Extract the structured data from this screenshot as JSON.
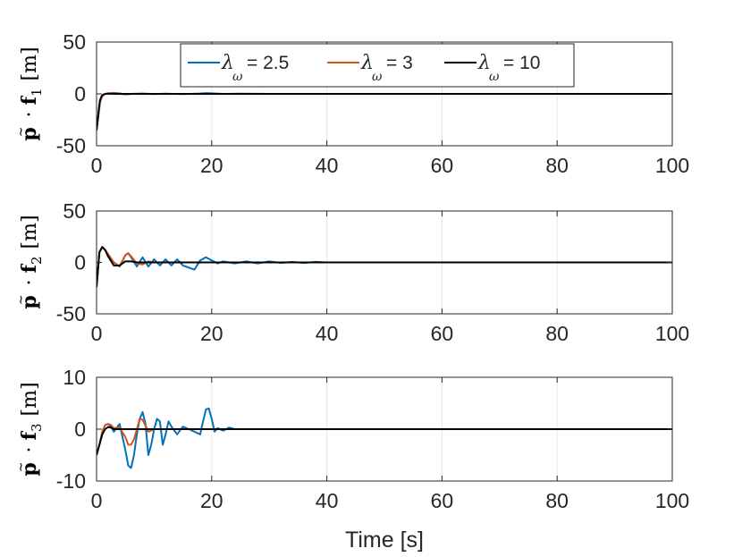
{
  "chart_data": [
    {
      "type": "line",
      "ylabel": {
        "vector": "p",
        "dot": "·",
        "basis": "f",
        "subscript": "1",
        "unit": "[m]"
      },
      "ylim": [
        -50,
        50
      ],
      "yticks": [
        "50",
        "0",
        "-50"
      ],
      "yticks_values": [
        50,
        0,
        -50
      ],
      "xlim": [
        0,
        100
      ],
      "xticks": [
        "0",
        "20",
        "40",
        "60",
        "80",
        "100"
      ],
      "xticks_values": [
        0,
        20,
        40,
        60,
        80,
        100
      ],
      "grid": true,
      "legend": {
        "placement": "top-center",
        "entries": [
          {
            "symbol": "λ",
            "sub": "ω",
            "text": "= 2.5",
            "color": "#0072BD"
          },
          {
            "symbol": "λ",
            "sub": "ω",
            "text": "= 3",
            "color": "#D95319"
          },
          {
            "symbol": "λ",
            "sub": "ω",
            "text": "= 10",
            "color": "#000000"
          }
        ]
      },
      "series": [
        {
          "color": "#0072BD",
          "x": [
            0,
            0.3,
            0.6,
            1,
            1.5,
            2,
            3,
            4,
            5,
            6,
            8,
            10,
            12,
            15,
            18,
            19,
            20,
            22,
            25,
            30,
            40,
            60,
            80,
            100
          ],
          "y": [
            -35,
            -22,
            -8,
            -2,
            0,
            0.5,
            1,
            0.5,
            -0.5,
            0,
            0.3,
            -0.2,
            0.2,
            -0.2,
            0.3,
            0.8,
            0.5,
            0,
            0.2,
            0,
            0,
            0,
            0,
            0
          ]
        },
        {
          "color": "#D95319",
          "x": [
            0,
            0.3,
            0.6,
            1,
            1.5,
            2,
            3,
            4,
            5,
            6,
            8,
            10,
            15,
            20,
            30,
            40,
            60,
            80,
            100
          ],
          "y": [
            -35,
            -22,
            -8,
            -2,
            0,
            0.3,
            0.6,
            0.2,
            -0.5,
            0,
            0.1,
            0,
            0,
            0,
            0,
            0,
            0,
            0,
            0
          ]
        },
        {
          "color": "#000000",
          "x": [
            0,
            0.2,
            0.4,
            0.6,
            0.9,
            1.2,
            1.6,
            2,
            3,
            5,
            10,
            20,
            40,
            60,
            80,
            100
          ],
          "y": [
            -35,
            -26,
            -14,
            -6,
            -2,
            -0.5,
            0,
            0.2,
            0,
            0,
            0,
            0,
            0,
            0,
            0,
            0
          ]
        }
      ]
    },
    {
      "type": "line",
      "ylabel": {
        "vector": "p",
        "dot": "·",
        "basis": "f",
        "subscript": "2",
        "unit": "[m]"
      },
      "ylim": [
        -50,
        50
      ],
      "yticks": [
        "50",
        "0",
        "-50"
      ],
      "yticks_values": [
        50,
        0,
        -50
      ],
      "xlim": [
        0,
        100
      ],
      "xticks": [
        "0",
        "20",
        "40",
        "60",
        "80",
        "100"
      ],
      "xticks_values": [
        0,
        20,
        40,
        60,
        80,
        100
      ],
      "grid": true,
      "series": [
        {
          "color": "#0072BD",
          "x": [
            0,
            0.5,
            1,
            1.5,
            2,
            3,
            4,
            5,
            5.5,
            6,
            7,
            8,
            9,
            10,
            11,
            12,
            13,
            14,
            15,
            16,
            17,
            18,
            19,
            20,
            21,
            22,
            24,
            26,
            28,
            30,
            32,
            34,
            36,
            38,
            40,
            50,
            60,
            70,
            80,
            90,
            100
          ],
          "y": [
            -24,
            10,
            15,
            12,
            8,
            0,
            -4,
            7,
            9,
            5,
            -4,
            5,
            -4,
            3,
            -3,
            3,
            -3,
            3,
            -3,
            -5,
            -7,
            2,
            5,
            2,
            -1,
            1,
            -1,
            1,
            -1,
            1,
            -0.5,
            0.5,
            -0.5,
            0.5,
            0,
            0,
            0,
            0,
            0,
            0,
            0
          ]
        },
        {
          "color": "#D95319",
          "x": [
            0,
            0.5,
            1,
            1.5,
            2,
            3,
            4,
            5,
            5.5,
            6,
            7,
            8,
            9,
            10,
            12,
            15,
            20,
            30,
            40,
            60,
            80,
            100
          ],
          "y": [
            -24,
            10,
            15,
            12,
            8,
            0,
            -4,
            7,
            9,
            6,
            -1,
            -2,
            1,
            0,
            0,
            0,
            0,
            0,
            0,
            0,
            0,
            0
          ]
        },
        {
          "color": "#000000",
          "x": [
            0,
            0.5,
            1,
            1.5,
            2,
            3,
            4,
            5,
            6,
            7,
            8,
            10,
            15,
            20,
            40,
            60,
            80,
            100
          ],
          "y": [
            -24,
            10,
            15,
            12,
            6,
            -3,
            -3,
            1,
            1,
            0,
            0,
            0,
            0,
            0,
            0,
            0,
            0,
            0
          ]
        }
      ]
    },
    {
      "type": "line",
      "ylabel": {
        "vector": "p",
        "dot": "·",
        "basis": "f",
        "subscript": "3",
        "unit": "[m]"
      },
      "ylim": [
        -10,
        10
      ],
      "yticks": [
        "10",
        "0",
        "-10"
      ],
      "yticks_values": [
        10,
        0,
        -10
      ],
      "xlim": [
        0,
        100
      ],
      "xticks": [
        "0",
        "20",
        "40",
        "60",
        "80",
        "100"
      ],
      "xticks_values": [
        0,
        20,
        40,
        60,
        80,
        100
      ],
      "xlabel": "Time [s]",
      "grid": true,
      "series": [
        {
          "color": "#0072BD",
          "x": [
            0,
            0.5,
            1,
            1.5,
            2,
            2.5,
            3,
            4,
            5,
            5.5,
            6,
            6.5,
            7,
            7.5,
            8,
            8.5,
            9,
            9.5,
            10,
            10.5,
            11,
            11.5,
            12,
            12.5,
            13,
            14,
            15,
            16,
            17,
            18,
            18.5,
            19,
            19.5,
            20,
            20.5,
            21,
            22,
            23,
            24,
            30,
            40,
            60,
            80,
            100
          ],
          "y": [
            -5,
            -3,
            -0.5,
            0.8,
            1,
            0.5,
            -0.5,
            1,
            -4,
            -7,
            -7.5,
            -5,
            -1,
            2,
            3.3,
            1,
            -5,
            -3,
            0,
            2,
            1.5,
            -3,
            -1,
            1.5,
            0.5,
            -1,
            0.5,
            0,
            -0.5,
            -1,
            1.5,
            3.8,
            4,
            2,
            -0.5,
            0.2,
            -0.3,
            0.3,
            0,
            0,
            0,
            0,
            0,
            0
          ]
        },
        {
          "color": "#D95319",
          "x": [
            0,
            0.5,
            1,
            1.5,
            2,
            2.5,
            3,
            4,
            5,
            5.5,
            6,
            6.5,
            7,
            7.5,
            8,
            9,
            10,
            12,
            15,
            20,
            40,
            60,
            80,
            100
          ],
          "y": [
            -5,
            -3,
            -0.5,
            0.8,
            1,
            0.8,
            0.2,
            0.3,
            -1.5,
            -3,
            -3,
            -2,
            0,
            2,
            1.8,
            -0.5,
            0,
            0,
            0,
            0,
            0,
            0,
            0,
            0
          ]
        },
        {
          "color": "#000000",
          "x": [
            0,
            0.5,
            1,
            1.5,
            2,
            2.5,
            3,
            4,
            5,
            6,
            8,
            10,
            20,
            40,
            60,
            80,
            100
          ],
          "y": [
            -5,
            -3,
            -1,
            0,
            0.4,
            0.3,
            0,
            0,
            0,
            0,
            0,
            0,
            0,
            0,
            0,
            0,
            0
          ]
        }
      ]
    }
  ]
}
